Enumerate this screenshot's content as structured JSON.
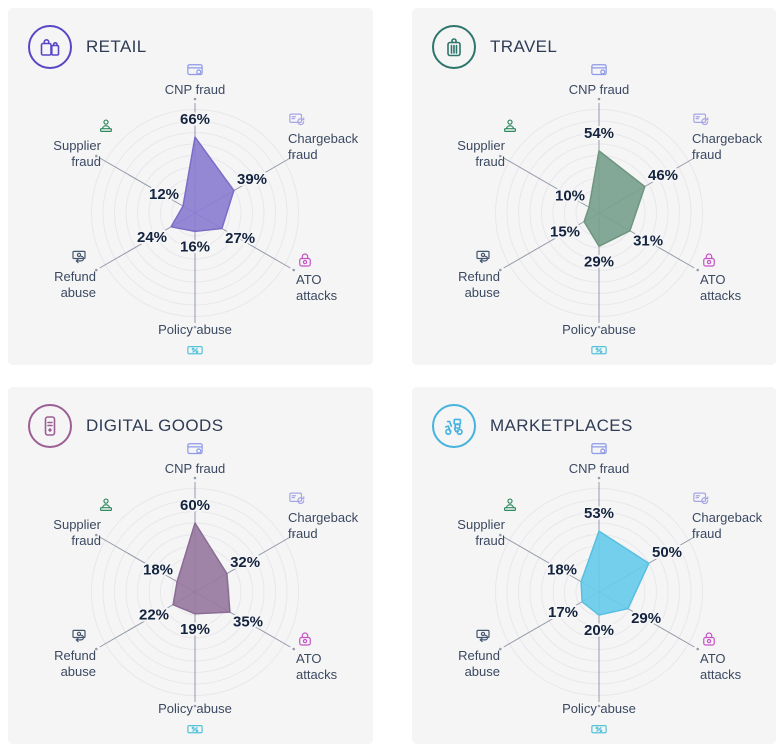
{
  "theme": {
    "page_background": "#ffffff",
    "card_background": "#f5f5f6",
    "title_color": "#2f3c54",
    "value_color": "#14243f",
    "axis_label_color": "#3b4960",
    "axis_line_color": "#949aa8",
    "ring_color": "#e8e8ec"
  },
  "categories": [
    {
      "key": "cnp",
      "label": "CNP fraud",
      "lines": [
        "CNP fraud"
      ],
      "icon": "credit-card-icon",
      "icon_color": "#8e99e8"
    },
    {
      "key": "chargeback",
      "label": "Chargeback fraud",
      "lines": [
        "Chargeback",
        "fraud"
      ],
      "icon": "chargeback-card-icon",
      "icon_color": "#a8a5e5"
    },
    {
      "key": "ato",
      "label": "ATO attacks",
      "lines": [
        "ATO",
        "attacks"
      ],
      "icon": "padlock-icon",
      "icon_color": "#c653c6"
    },
    {
      "key": "policy",
      "label": "Policy abuse",
      "lines": [
        "Policy abuse"
      ],
      "icon": "discount-tag-icon",
      "icon_color": "#54c3da"
    },
    {
      "key": "refund",
      "label": "Refund abuse",
      "lines": [
        "Refund",
        "abuse"
      ],
      "icon": "cash-refund-icon",
      "icon_color": "#44566e"
    },
    {
      "key": "supplier",
      "label": "Supplier fraud",
      "lines": [
        "Supplier",
        "fraud"
      ],
      "icon": "person-laptop-icon",
      "icon_color": "#2f8a60"
    }
  ],
  "cards": [
    {
      "title": "RETAIL",
      "icon": "shopping-bags-icon",
      "accent": "#5847c5",
      "fill": "#8a7cd1",
      "stroke": "#7b6dc7",
      "fill_opacity": 0.9,
      "values": {
        "cnp": 66,
        "chargeback": 39,
        "ato": 27,
        "policy": 16,
        "refund": 24,
        "supplier": 12
      }
    },
    {
      "title": "TRAVEL",
      "icon": "suitcase-icon",
      "accent": "#2e756b",
      "fill": "#7aa18e",
      "stroke": "#6e957f",
      "fill_opacity": 0.92,
      "values": {
        "cnp": 54,
        "chargeback": 46,
        "ato": 31,
        "policy": 29,
        "refund": 15,
        "supplier": 10
      }
    },
    {
      "title": "DIGITAL GOODS",
      "icon": "smartphone-icon",
      "accent": "#9b5f94",
      "fill": "#977aa0",
      "stroke": "#8a6c94",
      "fill_opacity": 0.92,
      "values": {
        "cnp": 60,
        "chargeback": 32,
        "ato": 35,
        "policy": 19,
        "refund": 22,
        "supplier": 18
      }
    },
    {
      "title": "MARKETPLACES",
      "icon": "delivery-scooter-icon",
      "accent": "#45b3dd",
      "fill": "#68cbea",
      "stroke": "#58bfe1",
      "fill_opacity": 0.92,
      "values": {
        "cnp": 53,
        "chargeback": 50,
        "ato": 29,
        "policy": 20,
        "refund": 17,
        "supplier": 18
      }
    }
  ],
  "chart_data": [
    {
      "type": "radar",
      "title": "RETAIL",
      "unit": "%",
      "categories": [
        "CNP fraud",
        "Chargeback fraud",
        "ATO attacks",
        "Policy abuse",
        "Refund abuse",
        "Supplier fraud"
      ],
      "values": [
        66,
        39,
        27,
        16,
        24,
        12
      ],
      "rmax": 100,
      "grid": "circular rings, 10% steps, no tick labels",
      "legend": "none",
      "color": "#8a7cd1"
    },
    {
      "type": "radar",
      "title": "TRAVEL",
      "unit": "%",
      "categories": [
        "CNP fraud",
        "Chargeback fraud",
        "ATO attacks",
        "Policy abuse",
        "Refund abuse",
        "Supplier fraud"
      ],
      "values": [
        54,
        46,
        31,
        29,
        15,
        10
      ],
      "rmax": 100,
      "grid": "circular rings, 10% steps, no tick labels",
      "legend": "none",
      "color": "#7aa18e"
    },
    {
      "type": "radar",
      "title": "DIGITAL GOODS",
      "unit": "%",
      "categories": [
        "CNP fraud",
        "Chargeback fraud",
        "ATO attacks",
        "Policy abuse",
        "Refund abuse",
        "Supplier fraud"
      ],
      "values": [
        60,
        32,
        35,
        19,
        22,
        18
      ],
      "rmax": 100,
      "grid": "circular rings, 10% steps, no tick labels",
      "legend": "none",
      "color": "#977aa0"
    },
    {
      "type": "radar",
      "title": "MARKETPLACES",
      "unit": "%",
      "categories": [
        "CNP fraud",
        "Chargeback fraud",
        "ATO attacks",
        "Policy abuse",
        "Refund abuse",
        "Supplier fraud"
      ],
      "values": [
        53,
        50,
        29,
        20,
        17,
        18
      ],
      "rmax": 100,
      "grid": "circular rings, 10% steps, no tick labels",
      "legend": "none",
      "color": "#68cbea"
    }
  ]
}
